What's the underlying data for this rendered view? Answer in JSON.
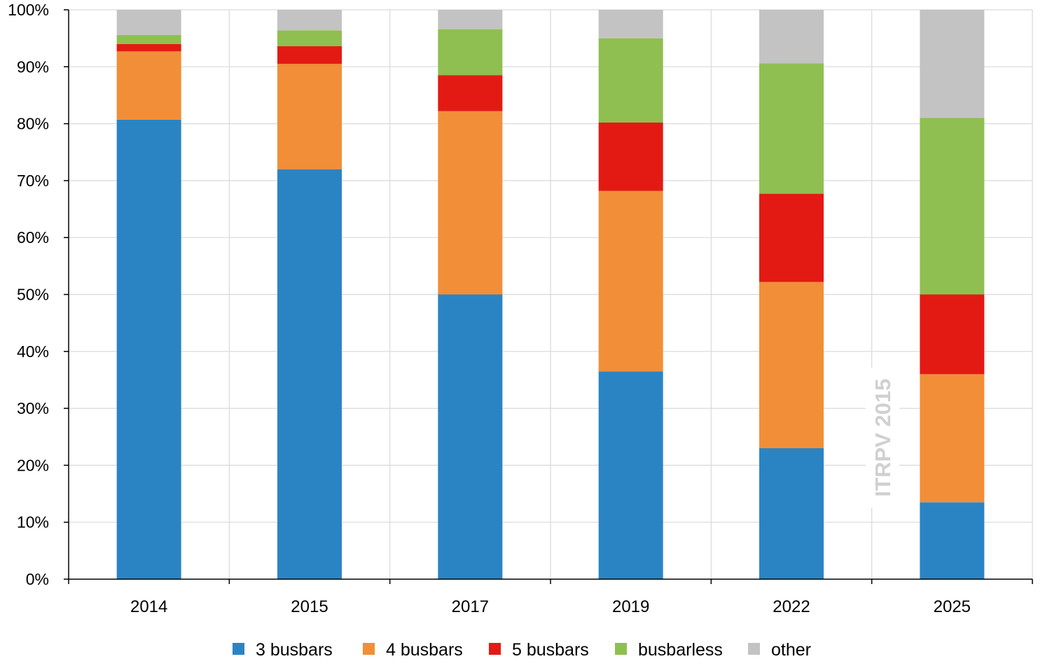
{
  "chart_data": {
    "type": "bar",
    "stacked": true,
    "categories": [
      "2014",
      "2015",
      "2017",
      "2019",
      "2022",
      "2025"
    ],
    "series": [
      {
        "name": "3 busbars",
        "color": "#2a84c4",
        "values": [
          80.7,
          72.0,
          50.0,
          36.5,
          23.0,
          13.5
        ]
      },
      {
        "name": "4 busbars",
        "color": "#f28e38",
        "values": [
          12.0,
          18.5,
          32.2,
          31.7,
          29.2,
          22.5
        ]
      },
      {
        "name": "5 busbars",
        "color": "#e31a13",
        "values": [
          1.3,
          3.1,
          6.3,
          12.0,
          15.5,
          14.0
        ]
      },
      {
        "name": "busbarless",
        "color": "#8fbf50",
        "values": [
          1.6,
          2.8,
          8.1,
          14.8,
          22.9,
          31.0
        ]
      },
      {
        "name": "other",
        "color": "#c3c3c3",
        "values": [
          4.4,
          3.6,
          3.4,
          5.0,
          9.4,
          19.0
        ]
      }
    ],
    "yticks": [
      "0%",
      "10%",
      "20%",
      "30%",
      "40%",
      "50%",
      "60%",
      "70%",
      "80%",
      "90%",
      "100%"
    ],
    "ylim": [
      0,
      100
    ],
    "title": "",
    "xlabel": "",
    "ylabel": "",
    "grid": true,
    "legend_position": "bottom",
    "watermark": "ITRPV 2015"
  }
}
